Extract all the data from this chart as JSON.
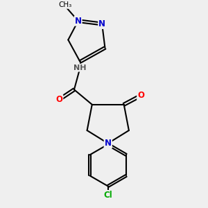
{
  "bg_color": "#efefef",
  "atom_colors": {
    "N": "#0000cc",
    "O": "#ff0000",
    "Cl": "#00aa00",
    "C": "#000000",
    "H": "#555555"
  },
  "bond_color": "#000000",
  "bond_width": 1.5,
  "fig_size": [
    3.0,
    3.0
  ],
  "dpi": 100,
  "xlim": [
    0,
    10
  ],
  "ylim": [
    0,
    10
  ]
}
